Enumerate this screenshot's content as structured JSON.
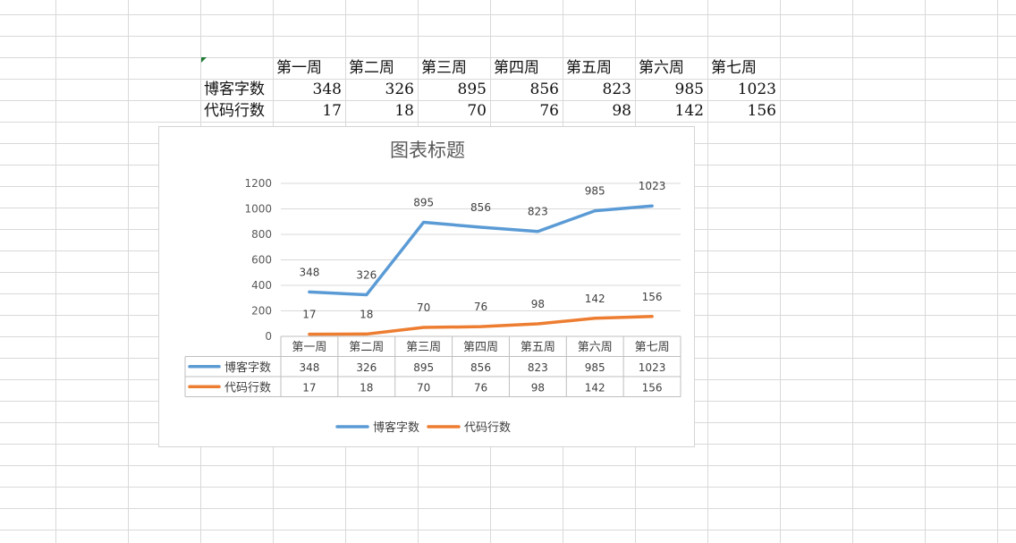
{
  "sheet": {
    "header_row": [
      "第一周",
      "第二周",
      "第三周",
      "第四周",
      "第五周",
      "第六周",
      "第七周"
    ],
    "rows": [
      {
        "label": "博客字数",
        "values": [
          "348",
          "326",
          "895",
          "856",
          "823",
          "985",
          "1023"
        ]
      },
      {
        "label": "代码行数",
        "values": [
          "17",
          "18",
          "70",
          "76",
          "98",
          "142",
          "156"
        ]
      }
    ]
  },
  "chart_data": {
    "type": "line",
    "title": "图表标题",
    "categories": [
      "第一周",
      "第二周",
      "第三周",
      "第四周",
      "第五周",
      "第六周",
      "第七周"
    ],
    "series": [
      {
        "name": "博客字数",
        "color": "#5b9bd5",
        "values": [
          348,
          326,
          895,
          856,
          823,
          985,
          1023
        ]
      },
      {
        "name": "代码行数",
        "color": "#ed7d31",
        "values": [
          17,
          18,
          70,
          76,
          98,
          142,
          156
        ]
      }
    ],
    "yticks": [
      0,
      200,
      400,
      600,
      800,
      1000,
      1200
    ],
    "ylim": [
      0,
      1200
    ],
    "grid": true,
    "data_labels": true,
    "data_table": true,
    "legend_position": "bottom"
  }
}
